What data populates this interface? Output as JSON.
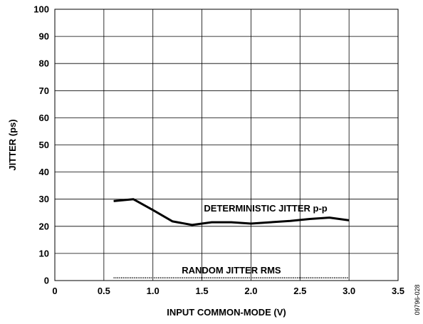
{
  "chart_data": {
    "type": "line",
    "xlabel": "INPUT COMMON-MODE (V)",
    "ylabel": "JITTER (ps)",
    "xlim": [
      0,
      3.5
    ],
    "ylim": [
      0,
      100
    ],
    "x_ticks": [
      0,
      0.5,
      1.0,
      1.5,
      2.0,
      2.5,
      3.0,
      3.5
    ],
    "x_tick_labels": [
      "0",
      "0.5",
      "1.0",
      "1.5",
      "2.0",
      "2.5",
      "3.0",
      "3.5"
    ],
    "y_ticks": [
      0,
      10,
      20,
      30,
      40,
      50,
      60,
      70,
      80,
      90,
      100
    ],
    "y_tick_labels": [
      "0",
      "10",
      "20",
      "30",
      "40",
      "50",
      "60",
      "70",
      "80",
      "90",
      "100"
    ],
    "grid": true,
    "series": [
      {
        "name": "DETERMINISTIC JITTER p-p",
        "style": "solid",
        "color": "#000000",
        "x": [
          0.6,
          0.8,
          1.0,
          1.2,
          1.4,
          1.6,
          1.8,
          2.0,
          2.2,
          2.4,
          2.6,
          2.8,
          3.0
        ],
        "y": [
          29.3,
          30.0,
          26.0,
          21.8,
          20.5,
          21.5,
          21.5,
          21.0,
          21.5,
          22.0,
          22.7,
          23.2,
          22.2
        ]
      },
      {
        "name": "RANDOM JITTER RMS",
        "style": "dotted",
        "color": "#000000",
        "x": [
          0.6,
          0.8,
          1.0,
          1.2,
          1.4,
          1.6,
          1.8,
          2.0,
          2.2,
          2.4,
          2.6,
          2.8,
          3.0
        ],
        "y": [
          1.0,
          1.0,
          1.0,
          1.0,
          1.0,
          1.0,
          1.0,
          1.0,
          1.0,
          1.0,
          1.0,
          1.0,
          1.0
        ]
      }
    ],
    "annotations": [
      {
        "text": "DETERMINISTIC JITTER p-p",
        "series": 0
      },
      {
        "text": "RANDOM JITTER RMS",
        "series": 1
      }
    ]
  },
  "figure_id": "09796-028"
}
